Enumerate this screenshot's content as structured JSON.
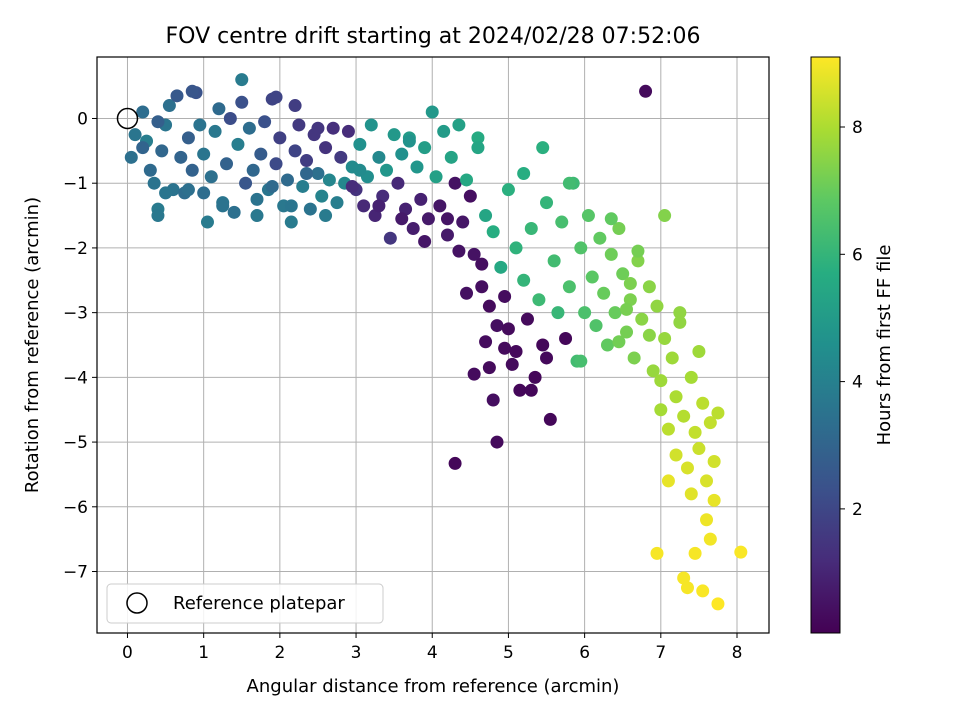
{
  "chart_data": {
    "type": "scatter",
    "title": "FOV centre drift starting at 2024/02/28 07:52:06",
    "xlabel": "Angular distance from reference (arcmin)",
    "ylabel": "Rotation from reference (arcmin)",
    "xlim": [
      -0.4,
      8.42
    ],
    "ylim": [
      -7.95,
      0.95
    ],
    "xticks": [
      0,
      1,
      2,
      3,
      4,
      5,
      6,
      7,
      8
    ],
    "yticks": [
      0,
      -1,
      -2,
      -3,
      -4,
      -5,
      -6,
      -7
    ],
    "grid": true,
    "colormap": "viridis",
    "colorbar": {
      "label": "Hours from first FF file",
      "range": [
        0.05,
        9.1
      ],
      "ticks": [
        2,
        4,
        6,
        8
      ]
    },
    "legend": {
      "position": "lower-left",
      "entries": [
        {
          "label": "Reference platepar",
          "marker": "open-circle"
        }
      ]
    },
    "reference_point": {
      "x": 0,
      "y": 0
    },
    "points": [
      [
        0.05,
        -0.6,
        3.4
      ],
      [
        0.1,
        -0.25,
        3.6
      ],
      [
        0.2,
        0.1,
        3.3
      ],
      [
        0.25,
        -0.35,
        3.9
      ],
      [
        0.3,
        -0.8,
        3.2
      ],
      [
        0.35,
        -1.0,
        3.5
      ],
      [
        0.4,
        -1.4,
        3.8
      ],
      [
        0.4,
        -1.5,
        3.7
      ],
      [
        0.45,
        -0.5,
        3.1
      ],
      [
        0.5,
        -0.1,
        3.6
      ],
      [
        0.55,
        0.2,
        3.4
      ],
      [
        0.6,
        -1.1,
        3.5
      ],
      [
        0.65,
        0.35,
        2.6
      ],
      [
        0.7,
        -0.6,
        3.0
      ],
      [
        0.75,
        -1.15,
        3.3
      ],
      [
        0.8,
        -0.3,
        2.8
      ],
      [
        0.85,
        -0.8,
        2.9
      ],
      [
        0.9,
        0.4,
        2.4
      ],
      [
        0.95,
        -0.1,
        3.5
      ],
      [
        1.0,
        -0.55,
        3.6
      ],
      [
        1.05,
        -1.6,
        3.8
      ],
      [
        1.1,
        -0.9,
        3.4
      ],
      [
        1.15,
        -0.2,
        3.7
      ],
      [
        1.2,
        0.15,
        3.2
      ],
      [
        1.25,
        -1.3,
        3.6
      ],
      [
        1.3,
        -0.7,
        2.9
      ],
      [
        1.35,
        0.0,
        2.2
      ],
      [
        1.4,
        -1.45,
        3.4
      ],
      [
        1.45,
        -0.4,
        3.9
      ],
      [
        1.5,
        0.6,
        3.8
      ],
      [
        1.55,
        -1.0,
        2.5
      ],
      [
        1.6,
        -0.15,
        3.3
      ],
      [
        1.65,
        -0.8,
        3.1
      ],
      [
        1.7,
        -1.25,
        3.5
      ],
      [
        1.75,
        -0.55,
        2.7
      ],
      [
        1.8,
        -0.05,
        2.3
      ],
      [
        1.85,
        -1.1,
        3.6
      ],
      [
        1.9,
        0.3,
        1.9
      ],
      [
        1.95,
        -0.7,
        2.1
      ],
      [
        2.0,
        -0.3,
        1.8
      ],
      [
        2.05,
        -1.35,
        3.7
      ],
      [
        2.1,
        -0.95,
        3.2
      ],
      [
        2.15,
        -1.6,
        3.8
      ],
      [
        2.2,
        -0.5,
        1.9
      ],
      [
        2.25,
        -0.1,
        1.6
      ],
      [
        2.3,
        -1.05,
        3.9
      ],
      [
        2.35,
        -0.65,
        1.7
      ],
      [
        2.4,
        -1.4,
        3.5
      ],
      [
        2.45,
        -0.25,
        1.5
      ],
      [
        2.5,
        -0.85,
        3.4
      ],
      [
        2.55,
        -1.2,
        4.1
      ],
      [
        2.6,
        -0.45,
        1.4
      ],
      [
        2.65,
        -0.95,
        4.2
      ],
      [
        2.7,
        -0.15,
        1.3
      ],
      [
        2.75,
        -1.3,
        3.9
      ],
      [
        2.8,
        -0.6,
        1.6
      ],
      [
        2.85,
        -1.0,
        4.3
      ],
      [
        2.9,
        -0.2,
        1.2
      ],
      [
        2.95,
        -0.75,
        4.4
      ],
      [
        3.0,
        -1.1,
        1.4
      ],
      [
        3.05,
        -0.4,
        4.6
      ],
      [
        3.1,
        -1.35,
        1.1
      ],
      [
        3.15,
        -0.9,
        4.5
      ],
      [
        3.2,
        -0.1,
        4.7
      ],
      [
        3.25,
        -1.5,
        1.0
      ],
      [
        3.3,
        -0.6,
        4.3
      ],
      [
        3.35,
        -1.2,
        1.2
      ],
      [
        3.4,
        -0.8,
        4.8
      ],
      [
        3.45,
        -1.85,
        1.5
      ],
      [
        3.5,
        -0.25,
        4.9
      ],
      [
        3.55,
        -1.0,
        1.1
      ],
      [
        3.6,
        -0.55,
        4.6
      ],
      [
        3.65,
        -1.4,
        0.9
      ],
      [
        3.7,
        -0.3,
        5.0
      ],
      [
        3.75,
        -1.7,
        0.8
      ],
      [
        3.8,
        -0.75,
        4.8
      ],
      [
        3.85,
        -1.25,
        0.9
      ],
      [
        3.9,
        -0.45,
        5.1
      ],
      [
        3.95,
        -1.55,
        0.7
      ],
      [
        4.0,
        0.1,
        4.9
      ],
      [
        4.05,
        -0.9,
        5.2
      ],
      [
        4.1,
        -1.35,
        0.6
      ],
      [
        4.15,
        -0.2,
        5.0
      ],
      [
        4.2,
        -1.8,
        0.7
      ],
      [
        4.25,
        -0.6,
        5.3
      ],
      [
        4.3,
        -1.0,
        0.5
      ],
      [
        4.35,
        -0.1,
        5.2
      ],
      [
        4.4,
        -1.6,
        0.6
      ],
      [
        4.45,
        -0.95,
        5.5
      ],
      [
        4.5,
        -1.2,
        0.4
      ],
      [
        4.55,
        -2.1,
        0.5
      ],
      [
        4.6,
        -0.3,
        5.6
      ],
      [
        4.65,
        -2.6,
        0.4
      ],
      [
        4.7,
        -1.5,
        5.4
      ],
      [
        4.75,
        -2.9,
        0.3
      ],
      [
        4.8,
        -1.75,
        5.7
      ],
      [
        4.85,
        -3.2,
        0.4
      ],
      [
        4.9,
        -2.3,
        5.5
      ],
      [
        4.95,
        -3.55,
        0.3
      ],
      [
        5.0,
        -1.1,
        5.8
      ],
      [
        5.05,
        -3.8,
        0.3
      ],
      [
        5.1,
        -2.0,
        5.9
      ],
      [
        5.15,
        -4.2,
        0.2
      ],
      [
        5.2,
        -2.5,
        6.0
      ],
      [
        5.25,
        -3.1,
        0.3
      ],
      [
        5.3,
        -1.7,
        6.1
      ],
      [
        5.35,
        -4.0,
        0.2
      ],
      [
        5.4,
        -2.8,
        6.2
      ],
      [
        5.45,
        -3.5,
        0.2
      ],
      [
        5.5,
        -1.3,
        6.0
      ],
      [
        5.55,
        -4.65,
        0.2
      ],
      [
        5.6,
        -2.2,
        6.3
      ],
      [
        5.65,
        -3.0,
        6.1
      ],
      [
        5.7,
        -1.6,
        6.4
      ],
      [
        5.75,
        -3.4,
        0.2
      ],
      [
        5.8,
        -2.6,
        6.5
      ],
      [
        5.85,
        -1.0,
        6.2
      ],
      [
        5.9,
        -3.75,
        6.3
      ],
      [
        5.95,
        -2.0,
        6.6
      ],
      [
        6.0,
        -3.0,
        6.5
      ],
      [
        6.05,
        -1.5,
        6.7
      ],
      [
        6.1,
        -2.45,
        6.8
      ],
      [
        6.15,
        -3.2,
        6.6
      ],
      [
        6.2,
        -1.85,
        6.9
      ],
      [
        6.25,
        -2.7,
        7.0
      ],
      [
        6.3,
        -3.5,
        6.9
      ],
      [
        6.35,
        -2.1,
        7.1
      ],
      [
        6.4,
        -3.0,
        7.0
      ],
      [
        6.45,
        -1.7,
        7.2
      ],
      [
        6.5,
        -2.4,
        7.1
      ],
      [
        6.55,
        -3.3,
        7.2
      ],
      [
        6.6,
        -2.8,
        7.3
      ],
      [
        6.65,
        -3.7,
        7.3
      ],
      [
        6.7,
        -2.2,
        7.4
      ],
      [
        6.75,
        -3.1,
        7.5
      ],
      [
        6.8,
        0.42,
        0.3
      ],
      [
        6.85,
        -2.6,
        7.5
      ],
      [
        6.9,
        -3.9,
        7.7
      ],
      [
        6.95,
        -2.9,
        7.6
      ],
      [
        7.0,
        -4.5,
        7.9
      ],
      [
        7.05,
        -1.5,
        7.4
      ],
      [
        7.05,
        -3.4,
        7.7
      ],
      [
        7.1,
        -4.8,
        8.2
      ],
      [
        7.1,
        -5.6,
        8.8
      ],
      [
        7.15,
        -3.7,
        7.8
      ],
      [
        7.2,
        -4.3,
        8.0
      ],
      [
        7.2,
        -5.2,
        8.5
      ],
      [
        7.25,
        -3.0,
        7.6
      ],
      [
        7.3,
        -4.6,
        8.1
      ],
      [
        7.3,
        -7.1,
        9.0
      ],
      [
        7.35,
        -5.4,
        8.6
      ],
      [
        7.35,
        -7.25,
        9.0
      ],
      [
        7.4,
        -4.0,
        7.9
      ],
      [
        7.4,
        -5.8,
        8.7
      ],
      [
        7.45,
        -4.85,
        8.3
      ],
      [
        7.45,
        -6.72,
        9.0
      ],
      [
        7.5,
        -3.6,
        7.8
      ],
      [
        7.5,
        -5.1,
        8.4
      ],
      [
        7.55,
        -4.4,
        8.2
      ],
      [
        7.55,
        -7.3,
        9.05
      ],
      [
        7.6,
        -6.2,
        8.9
      ],
      [
        7.6,
        -5.6,
        8.6
      ],
      [
        7.65,
        -4.7,
        8.3
      ],
      [
        7.65,
        -6.5,
        8.95
      ],
      [
        7.7,
        -5.3,
        8.5
      ],
      [
        7.7,
        -5.9,
        8.8
      ],
      [
        7.75,
        -4.55,
        8.2
      ],
      [
        7.75,
        -7.5,
        9.1
      ],
      [
        8.05,
        -6.7,
        9.05
      ],
      [
        6.95,
        -6.72,
        9.0
      ],
      [
        4.3,
        -5.33,
        0.2
      ],
      [
        4.85,
        -5.0,
        0.3
      ],
      [
        4.8,
        -4.35,
        0.4
      ],
      [
        4.55,
        -3.95,
        0.35
      ],
      [
        4.45,
        -2.7,
        0.45
      ],
      [
        4.2,
        -1.55,
        0.55
      ],
      [
        3.9,
        -1.9,
        0.6
      ],
      [
        3.6,
        -1.55,
        0.7
      ],
      [
        3.3,
        -1.35,
        0.9
      ],
      [
        2.95,
        -1.05,
        1.2
      ],
      [
        2.5,
        -0.15,
        1.5
      ],
      [
        2.2,
        0.2,
        1.7
      ],
      [
        1.95,
        0.33,
        1.9
      ],
      [
        1.5,
        0.25,
        2.3
      ],
      [
        0.85,
        0.42,
        2.5
      ],
      [
        0.4,
        -0.05,
        2.8
      ],
      [
        0.2,
        -0.45,
        3.0
      ],
      [
        3.7,
        -0.35,
        4.7
      ],
      [
        4.6,
        -0.45,
        5.4
      ],
      [
        5.2,
        -0.85,
        5.7
      ],
      [
        5.45,
        -0.45,
        5.8
      ],
      [
        5.8,
        -1.0,
        6.3
      ],
      [
        6.35,
        -1.55,
        6.9
      ],
      [
        6.7,
        -2.05,
        7.2
      ],
      [
        6.6,
        -2.55,
        7.3
      ],
      [
        6.55,
        -2.95,
        7.25
      ],
      [
        6.45,
        -3.45,
        7.15
      ],
      [
        6.85,
        -3.35,
        7.5
      ],
      [
        7.0,
        -4.05,
        7.8
      ],
      [
        7.25,
        -3.15,
        7.6
      ],
      [
        5.95,
        -3.75,
        6.4
      ],
      [
        5.5,
        -3.7,
        0.25
      ],
      [
        5.3,
        -4.2,
        0.2
      ],
      [
        4.7,
        -3.45,
        0.35
      ],
      [
        5.0,
        -3.25,
        0.3
      ],
      [
        4.95,
        -2.75,
        0.35
      ],
      [
        4.65,
        -2.25,
        0.4
      ],
      [
        4.35,
        -2.05,
        0.5
      ],
      [
        4.75,
        -3.85,
        0.3
      ],
      [
        5.1,
        -3.6,
        0.25
      ],
      [
        2.6,
        -1.5,
        3.8
      ],
      [
        2.15,
        -1.35,
        3.6
      ],
      [
        1.7,
        -1.5,
        3.7
      ],
      [
        1.25,
        -1.35,
        3.5
      ],
      [
        0.8,
        -1.1,
        3.4
      ],
      [
        0.5,
        -1.15,
        3.6
      ],
      [
        1.0,
        -1.15,
        3.3
      ],
      [
        1.9,
        -1.05,
        3.2
      ],
      [
        2.35,
        -0.85,
        3.1
      ],
      [
        3.05,
        -0.8,
        4.4
      ]
    ]
  }
}
